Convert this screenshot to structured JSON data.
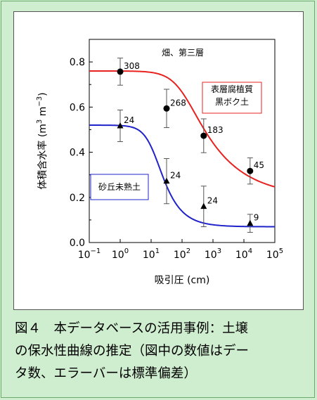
{
  "caption": {
    "line1": "図４　本データベースの活用事例：土壌",
    "line2": "の保水性曲線の推定（図中の数値はデー",
    "line3": "タ数、エラーバーは標準偏差）"
  },
  "chart_data": {
    "type": "scatter",
    "title": "畑、第三層",
    "xlabel": "吸引圧 (cm)",
    "ylabel": "体積含水率 (m3 m-3)",
    "xscale": "log",
    "xlim": [
      0.1,
      100000
    ],
    "ylim": [
      0,
      0.9
    ],
    "x_ticks": [
      {
        "value": 0.1,
        "base": "10",
        "exp": "−1"
      },
      {
        "value": 1,
        "base": "10",
        "exp": "0"
      },
      {
        "value": 10,
        "base": "10",
        "exp": "1"
      },
      {
        "value": 100,
        "base": "10",
        "exp": "2"
      },
      {
        "value": 1000,
        "base": "10",
        "exp": "3"
      },
      {
        "value": 10000,
        "base": "10",
        "exp": "4"
      },
      {
        "value": 100000,
        "base": "10",
        "exp": "5"
      }
    ],
    "y_ticks": [
      "0.0",
      "0.2",
      "0.4",
      "0.6",
      "0.8"
    ],
    "series": [
      {
        "name": "表層腐植質黒ボク土",
        "color": "#e8221f",
        "marker": "circle",
        "points": [
          {
            "x": 1,
            "y": 0.757,
            "err": 0.06,
            "n": "308"
          },
          {
            "x": 31.6,
            "y": 0.594,
            "err": 0.085,
            "n": "268"
          },
          {
            "x": 501,
            "y": 0.473,
            "err": 0.075,
            "n": "183"
          },
          {
            "x": 15849,
            "y": 0.317,
            "err": 0.058,
            "n": "45"
          }
        ],
        "curve": {
          "theta_s": 0.76,
          "theta_r": 0.2,
          "alpha": 0.01,
          "n": 1.36
        }
      },
      {
        "name": "砂丘未熟土",
        "color": "#1f23c9",
        "marker": "triangle",
        "points": [
          {
            "x": 1,
            "y": 0.517,
            "err": 0.07,
            "n": "24"
          },
          {
            "x": 31.6,
            "y": 0.272,
            "err": 0.1,
            "n": "24"
          },
          {
            "x": 501,
            "y": 0.16,
            "err": 0.09,
            "n": "24"
          },
          {
            "x": 15849,
            "y": 0.085,
            "err": 0.04,
            "n": "9"
          }
        ],
        "curve": {
          "theta_s": 0.52,
          "theta_r": 0.07,
          "alpha": 0.08,
          "n": 1.9
        }
      }
    ],
    "legend_labels": [
      {
        "series": 0,
        "lines": [
          "表層腐植質",
          "黒ボク土"
        ]
      },
      {
        "series": 1,
        "lines": [
          "砂丘未熟土"
        ]
      }
    ]
  }
}
